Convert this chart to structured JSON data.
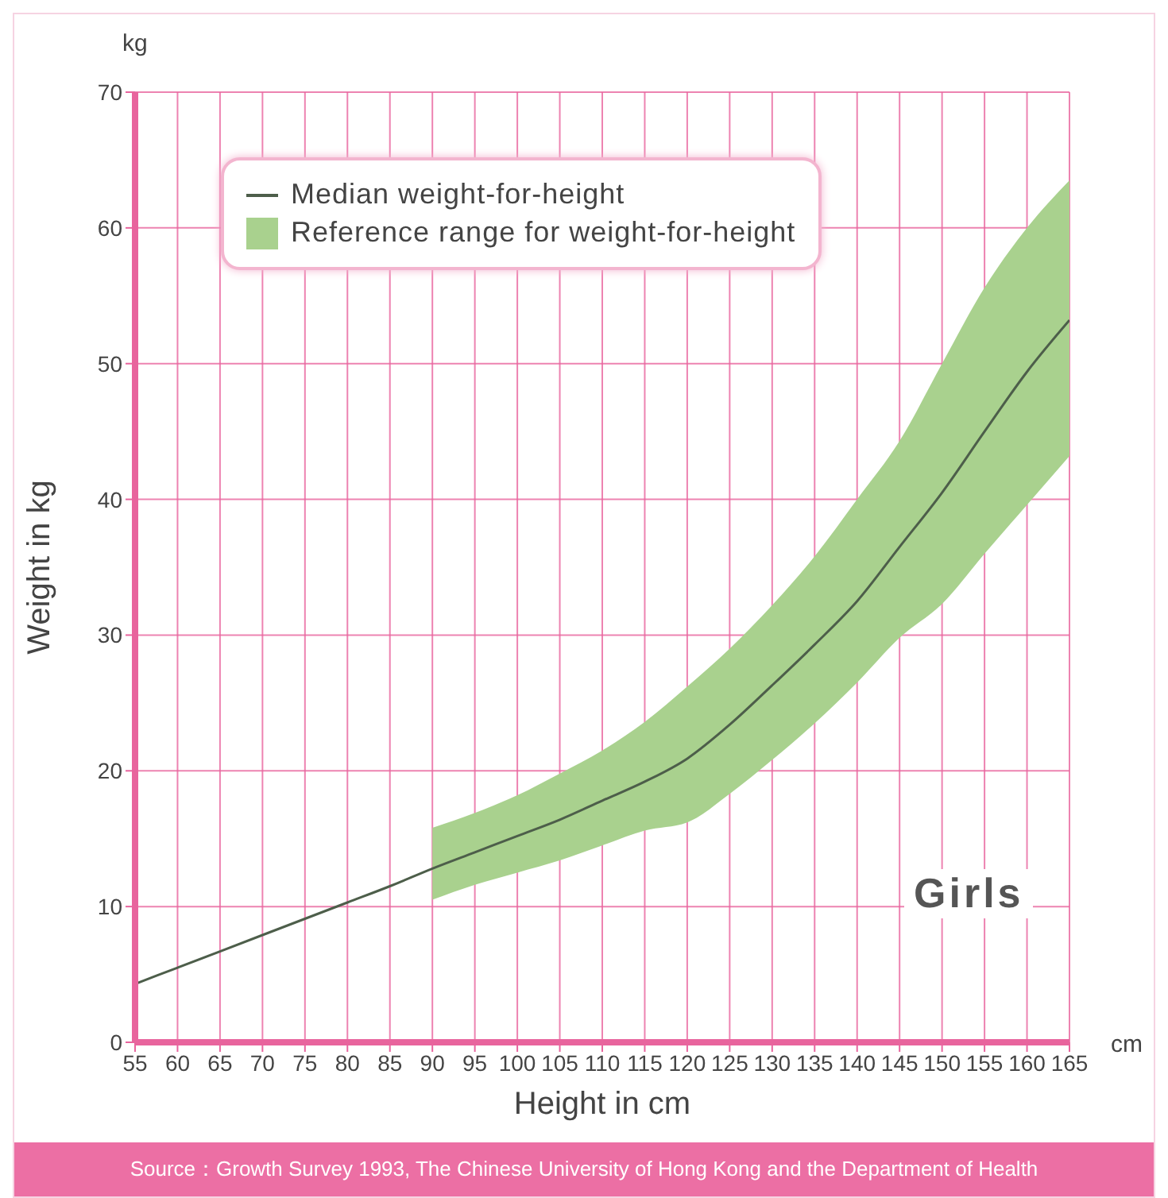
{
  "chart_data": {
    "type": "line",
    "xlabel": "Height in cm",
    "ylabel": "Weight in kg",
    "annotations": [
      "kg",
      "cm",
      "Girls",
      "Source：Growth Survey 1993, The Chinese University of Hong Kong and the Department of Health"
    ],
    "series": [
      {
        "name": "Median weight-for-height",
        "type": "line",
        "color": "#4d5e4a",
        "x": [
          55,
          60,
          65,
          70,
          75,
          80,
          85,
          90,
          95,
          100,
          105,
          110,
          115,
          120,
          125,
          130,
          135,
          140,
          145,
          150,
          155,
          160,
          165
        ],
        "values": [
          4.3,
          5.5,
          6.7,
          7.9,
          9.1,
          10.3,
          11.5,
          12.8,
          14.0,
          15.2,
          16.4,
          17.8,
          19.2,
          20.9,
          23.4,
          26.3,
          29.3,
          32.5,
          36.5,
          40.5,
          45.0,
          49.4,
          53.2
        ],
        "lower": [
          null,
          null,
          null,
          null,
          null,
          null,
          null,
          10.5,
          11.6,
          12.5,
          13.4,
          14.5,
          15.6,
          16.2,
          18.3,
          20.8,
          23.5,
          26.5,
          29.8,
          32.3,
          36.0,
          39.6,
          43.2
        ],
        "upper": [
          null,
          null,
          null,
          null,
          null,
          null,
          null,
          15.8,
          16.9,
          18.2,
          19.8,
          21.5,
          23.6,
          26.2,
          29.0,
          32.2,
          35.8,
          40.0,
          44.3,
          50.0,
          55.6,
          60.0,
          63.5
        ]
      },
      {
        "name": "Reference range for weight-for-height",
        "type": "area",
        "color": "#a9d18e"
      }
    ],
    "xlim": [
      55,
      165
    ],
    "xticks": [
      55,
      60,
      65,
      70,
      75,
      80,
      85,
      90,
      95,
      100,
      105,
      110,
      115,
      120,
      125,
      130,
      135,
      140,
      145,
      150,
      155,
      160,
      165
    ],
    "ylim": [
      0,
      70
    ],
    "yticks": [
      0,
      10,
      20,
      30,
      40,
      50,
      60,
      70
    ],
    "grid": true,
    "legend": "top left",
    "marker": "none",
    "line_style": "solid"
  }
}
